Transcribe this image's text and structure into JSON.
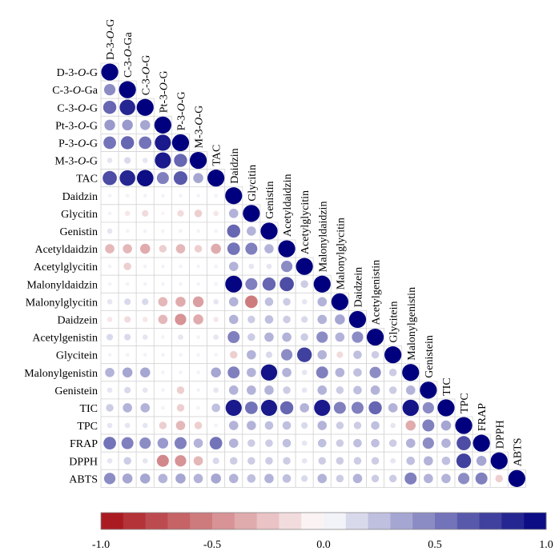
{
  "chart_data": {
    "type": "heatmap",
    "subtype": "correlation-matrix-lower-triangle",
    "title": "",
    "variables": [
      [
        "D-3-",
        "O",
        "-G"
      ],
      [
        "C-3-",
        "O",
        "-Ga"
      ],
      [
        "C-3-",
        "O",
        "-G"
      ],
      [
        "Pt-3-",
        "O",
        "-G"
      ],
      [
        "P-3-",
        "O",
        "-G"
      ],
      [
        "M-3-",
        "O",
        "-G"
      ],
      [
        "TAC"
      ],
      [
        "Daidzin"
      ],
      [
        "Glycitin"
      ],
      [
        "Genistin"
      ],
      [
        "Acetyldaidzin"
      ],
      [
        "Acetylglycitin"
      ],
      [
        "Malonyldaidzin"
      ],
      [
        "Malonylglycitin"
      ],
      [
        "Daidzein"
      ],
      [
        "Acetylgenistin"
      ],
      [
        "Glycitein"
      ],
      [
        "Malonylgenistin"
      ],
      [
        "Genistein"
      ],
      [
        "TIC"
      ],
      [
        "TPC"
      ],
      [
        "FRAP"
      ],
      [
        "DPPH"
      ],
      [
        "ABTS"
      ]
    ],
    "matrix": [
      [
        1.0
      ],
      [
        0.45,
        1.0
      ],
      [
        0.6,
        0.85,
        1.0
      ],
      [
        0.4,
        0.4,
        0.35,
        1.0
      ],
      [
        0.55,
        0.6,
        0.55,
        0.9,
        1.0
      ],
      [
        0.1,
        0.15,
        0.1,
        0.9,
        0.6,
        1.0
      ],
      [
        0.7,
        0.85,
        0.95,
        0.5,
        0.65,
        0.35,
        1.0
      ],
      [
        0.05,
        0.05,
        0.05,
        0.05,
        0.05,
        0.05,
        0.05,
        1.0
      ],
      [
        0.05,
        -0.1,
        -0.15,
        -0.05,
        -0.15,
        -0.2,
        -0.1,
        0.3,
        1.0
      ],
      [
        0.1,
        0.05,
        0.05,
        0.05,
        0.05,
        0.05,
        0.05,
        0.6,
        0.3,
        1.0
      ],
      [
        -0.3,
        -0.3,
        -0.35,
        -0.2,
        -0.3,
        -0.2,
        -0.35,
        0.55,
        0.5,
        0.3,
        1.0
      ],
      [
        0.05,
        -0.2,
        0.05,
        0.05,
        0.05,
        0.05,
        0.05,
        0.3,
        0.1,
        0.1,
        0.45,
        1.0
      ],
      [
        0.05,
        0.05,
        0.05,
        0.05,
        0.05,
        0.05,
        0.05,
        0.98,
        0.5,
        0.6,
        0.7,
        0.2,
        1.0
      ],
      [
        0.1,
        0.15,
        0.15,
        -0.3,
        -0.35,
        -0.4,
        0.1,
        0.3,
        -0.55,
        0.25,
        0.2,
        0.1,
        0.3,
        1.0
      ],
      [
        -0.1,
        -0.15,
        -0.1,
        -0.3,
        -0.45,
        -0.35,
        -0.1,
        0.3,
        0.2,
        0.25,
        0.2,
        0.15,
        0.3,
        0.35,
        1.0
      ],
      [
        0.15,
        0.15,
        0.1,
        0.05,
        0.1,
        0.05,
        0.1,
        0.5,
        0.2,
        0.3,
        0.3,
        0.2,
        0.45,
        0.3,
        0.45,
        1.0
      ],
      [
        0.05,
        0.05,
        0.05,
        0.05,
        0.05,
        0.05,
        0.05,
        -0.2,
        0.3,
        0.15,
        0.45,
        0.75,
        0.3,
        -0.15,
        0.25,
        0.2,
        1.0
      ],
      [
        0.3,
        0.35,
        0.35,
        0.05,
        0.05,
        0.05,
        0.35,
        0.5,
        0.3,
        0.92,
        0.3,
        0.1,
        0.5,
        0.3,
        0.25,
        0.45,
        0.2,
        1.0
      ],
      [
        0.1,
        0.15,
        0.1,
        0.05,
        -0.2,
        0.05,
        0.1,
        0.3,
        0.3,
        0.3,
        0.2,
        0.1,
        0.3,
        0.2,
        0.25,
        0.3,
        0.2,
        0.3,
        1.0
      ],
      [
        0.2,
        0.3,
        0.3,
        0.05,
        -0.2,
        0.05,
        0.25,
        0.9,
        0.55,
        0.9,
        0.6,
        0.3,
        0.9,
        0.5,
        0.5,
        0.6,
        0.3,
        0.92,
        0.45,
        1.0
      ],
      [
        0.1,
        0.1,
        0.1,
        -0.2,
        -0.3,
        -0.2,
        0.05,
        0.3,
        0.3,
        0.25,
        0.25,
        0.15,
        0.3,
        0.2,
        0.2,
        0.25,
        0.1,
        -0.35,
        0.5,
        0.35,
        1.0
      ],
      [
        0.55,
        0.5,
        0.45,
        0.4,
        0.5,
        0.3,
        0.55,
        0.3,
        0.2,
        0.2,
        0.25,
        0.1,
        0.25,
        0.2,
        0.25,
        0.25,
        0.2,
        0.3,
        0.45,
        0.3,
        0.7,
        1.0
      ],
      [
        0.1,
        0.2,
        0.1,
        -0.5,
        -0.45,
        -0.3,
        0.15,
        0.2,
        0.2,
        0.2,
        0.2,
        0.1,
        0.2,
        0.2,
        0.2,
        0.2,
        0.1,
        0.25,
        0.3,
        0.25,
        0.75,
        0.35,
        1.0
      ],
      [
        0.45,
        0.35,
        0.35,
        0.3,
        0.35,
        0.3,
        0.35,
        0.3,
        0.25,
        0.3,
        0.25,
        0.15,
        0.3,
        0.2,
        0.3,
        0.2,
        0.2,
        0.5,
        0.3,
        0.3,
        0.45,
        0.5,
        -0.2,
        1.0
      ]
    ],
    "color_scale": {
      "min": -1.0,
      "max": 1.0,
      "negative_color": "#A50F15",
      "neutral_color": "#FFFFFF",
      "positive_color": "#00007F",
      "ticks": [
        "-1.0",
        "-0.5",
        "0.0",
        "0.5",
        "1.0"
      ]
    },
    "legend_placement": "bottom",
    "grid": true
  }
}
